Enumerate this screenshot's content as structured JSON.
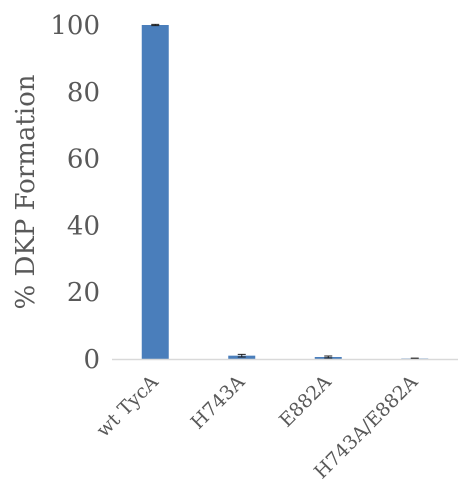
{
  "chart_data": {
    "type": "bar",
    "title": "",
    "xlabel": "",
    "ylabel": "% DKP Formation",
    "categories": [
      "wt TycA",
      "H743A",
      "E882A",
      "H743A/E882A"
    ],
    "values": [
      100,
      1.0,
      0.6,
      0.15
    ],
    "errors": [
      0.2,
      0.4,
      0.3,
      0.1
    ],
    "ylim": [
      0,
      100
    ],
    "yticks": [
      0,
      20,
      40,
      60,
      80,
      100
    ],
    "grid": false,
    "legend": "none",
    "bar_color": "#4a7ebb",
    "axis_color": "#d9d9d9",
    "text_color": "#595959"
  }
}
